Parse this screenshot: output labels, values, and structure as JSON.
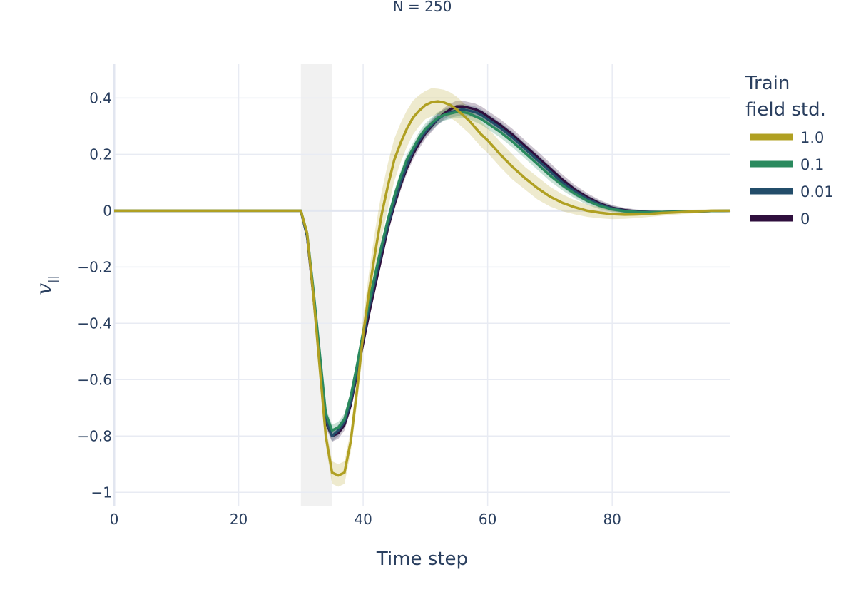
{
  "chart_data": {
    "type": "line",
    "title": "N = 250",
    "xlabel": "Time step",
    "ylabel": "v",
    "ylabel_subscript": "||",
    "xlim": [
      0,
      99
    ],
    "ylim": [
      -1.05,
      0.52
    ],
    "xticks": [
      0,
      20,
      40,
      60,
      80
    ],
    "xtick_labels": [
      "0",
      "20",
      "40",
      "60",
      "80"
    ],
    "yticks": [
      0.4,
      0.2,
      0,
      -0.2,
      -0.4,
      -0.6,
      -0.8,
      -1
    ],
    "ytick_labels": [
      "0.4",
      "0.2",
      "0",
      "−0.2",
      "−0.4",
      "−0.6",
      "−0.8",
      "−1"
    ],
    "shaded_region": {
      "x": [
        30,
        35
      ],
      "color": "#e6e6e6"
    },
    "legend": {
      "title_lines": [
        "Train",
        "field std."
      ],
      "position": "right"
    },
    "x": [
      0,
      30,
      31,
      32,
      33,
      34,
      35,
      36,
      37,
      38,
      39,
      40,
      41,
      42,
      43,
      44,
      45,
      46,
      47,
      48,
      49,
      50,
      51,
      52,
      53,
      54,
      55,
      56,
      57,
      58,
      59,
      60,
      62,
      64,
      66,
      68,
      70,
      72,
      74,
      76,
      78,
      80,
      82,
      84,
      86,
      88,
      90,
      92,
      94,
      96,
      99
    ],
    "series": [
      {
        "name": "1.0",
        "color": "#b0a022",
        "values": [
          0,
          0,
          -0.08,
          -0.3,
          -0.55,
          -0.8,
          -0.93,
          -0.94,
          -0.93,
          -0.82,
          -0.64,
          -0.44,
          -0.28,
          -0.14,
          -0.01,
          0.09,
          0.18,
          0.24,
          0.29,
          0.33,
          0.355,
          0.375,
          0.385,
          0.388,
          0.384,
          0.375,
          0.36,
          0.34,
          0.32,
          0.295,
          0.27,
          0.25,
          0.2,
          0.155,
          0.115,
          0.08,
          0.05,
          0.028,
          0.012,
          0.0,
          -0.007,
          -0.012,
          -0.014,
          -0.013,
          -0.011,
          -0.008,
          -0.006,
          -0.004,
          -0.002,
          0.0,
          0.0
        ],
        "band": [
          0.004,
          0,
          0.01,
          0.02,
          0.03,
          0.035,
          0.04,
          0.04,
          0.04,
          0.04,
          0.05,
          0.06,
          0.07,
          0.08,
          0.08,
          0.08,
          0.075,
          0.07,
          0.065,
          0.06,
          0.055,
          0.05,
          0.05,
          0.045,
          0.045,
          0.045,
          0.045,
          0.045,
          0.045,
          0.045,
          0.045,
          0.045,
          0.045,
          0.045,
          0.04,
          0.04,
          0.035,
          0.03,
          0.025,
          0.022,
          0.02,
          0.018,
          0.015,
          0.013,
          0.011,
          0.01,
          0.008,
          0.007,
          0.006,
          0.005,
          0.004
        ]
      },
      {
        "name": "0.1",
        "color": "#2a8a5e",
        "values": [
          0,
          0,
          -0.08,
          -0.28,
          -0.5,
          -0.72,
          -0.78,
          -0.77,
          -0.74,
          -0.66,
          -0.55,
          -0.43,
          -0.32,
          -0.22,
          -0.12,
          -0.03,
          0.05,
          0.12,
          0.18,
          0.22,
          0.26,
          0.29,
          0.31,
          0.33,
          0.34,
          0.345,
          0.35,
          0.35,
          0.345,
          0.335,
          0.325,
          0.31,
          0.28,
          0.245,
          0.205,
          0.165,
          0.125,
          0.09,
          0.06,
          0.035,
          0.017,
          0.005,
          -0.002,
          -0.005,
          -0.006,
          -0.005,
          -0.004,
          -0.003,
          -0.002,
          -0.001,
          0.0
        ],
        "band": [
          0.003,
          0,
          0.01,
          0.015,
          0.02,
          0.02,
          0.02,
          0.02,
          0.02,
          0.02,
          0.02,
          0.02,
          0.02,
          0.02,
          0.02,
          0.02,
          0.02,
          0.02,
          0.02,
          0.02,
          0.02,
          0.02,
          0.02,
          0.02,
          0.02,
          0.02,
          0.02,
          0.02,
          0.02,
          0.02,
          0.02,
          0.02,
          0.02,
          0.02,
          0.02,
          0.02,
          0.02,
          0.018,
          0.016,
          0.014,
          0.012,
          0.01,
          0.008,
          0.007,
          0.006,
          0.005,
          0.004,
          0.004,
          0.003,
          0.003,
          0.003
        ]
      },
      {
        "name": "0.01",
        "color": "#234d6a",
        "values": [
          0,
          0,
          -0.09,
          -0.29,
          -0.52,
          -0.74,
          -0.8,
          -0.78,
          -0.75,
          -0.68,
          -0.57,
          -0.45,
          -0.34,
          -0.24,
          -0.14,
          -0.05,
          0.03,
          0.1,
          0.16,
          0.21,
          0.25,
          0.28,
          0.305,
          0.325,
          0.34,
          0.35,
          0.355,
          0.36,
          0.355,
          0.35,
          0.34,
          0.325,
          0.295,
          0.26,
          0.22,
          0.18,
          0.14,
          0.1,
          0.068,
          0.042,
          0.022,
          0.008,
          0.0,
          -0.004,
          -0.005,
          -0.005,
          -0.004,
          -0.003,
          -0.002,
          -0.001,
          0.0
        ],
        "band": [
          0.003,
          0,
          0.01,
          0.015,
          0.02,
          0.02,
          0.02,
          0.02,
          0.02,
          0.02,
          0.02,
          0.02,
          0.02,
          0.02,
          0.02,
          0.02,
          0.02,
          0.02,
          0.02,
          0.02,
          0.02,
          0.02,
          0.02,
          0.02,
          0.02,
          0.02,
          0.02,
          0.02,
          0.02,
          0.02,
          0.02,
          0.02,
          0.02,
          0.02,
          0.02,
          0.02,
          0.02,
          0.018,
          0.016,
          0.014,
          0.012,
          0.01,
          0.008,
          0.007,
          0.006,
          0.005,
          0.004,
          0.004,
          0.003,
          0.003,
          0.003
        ]
      },
      {
        "name": "0",
        "color": "#2f0f3d",
        "values": [
          0,
          0,
          -0.09,
          -0.3,
          -0.53,
          -0.75,
          -0.8,
          -0.79,
          -0.76,
          -0.69,
          -0.58,
          -0.47,
          -0.36,
          -0.26,
          -0.16,
          -0.06,
          0.02,
          0.09,
          0.15,
          0.2,
          0.24,
          0.275,
          0.3,
          0.325,
          0.345,
          0.36,
          0.37,
          0.37,
          0.365,
          0.36,
          0.35,
          0.335,
          0.305,
          0.27,
          0.23,
          0.19,
          0.15,
          0.11,
          0.075,
          0.048,
          0.026,
          0.01,
          0.002,
          -0.003,
          -0.005,
          -0.005,
          -0.004,
          -0.003,
          -0.002,
          -0.001,
          0.0
        ],
        "band": [
          0.003,
          0,
          0.01,
          0.015,
          0.02,
          0.02,
          0.02,
          0.02,
          0.02,
          0.02,
          0.02,
          0.02,
          0.02,
          0.02,
          0.02,
          0.02,
          0.02,
          0.02,
          0.02,
          0.02,
          0.02,
          0.02,
          0.02,
          0.02,
          0.02,
          0.02,
          0.02,
          0.02,
          0.02,
          0.02,
          0.02,
          0.02,
          0.02,
          0.02,
          0.02,
          0.02,
          0.02,
          0.018,
          0.016,
          0.014,
          0.012,
          0.01,
          0.008,
          0.007,
          0.006,
          0.005,
          0.004,
          0.004,
          0.003,
          0.003,
          0.003
        ]
      }
    ]
  }
}
